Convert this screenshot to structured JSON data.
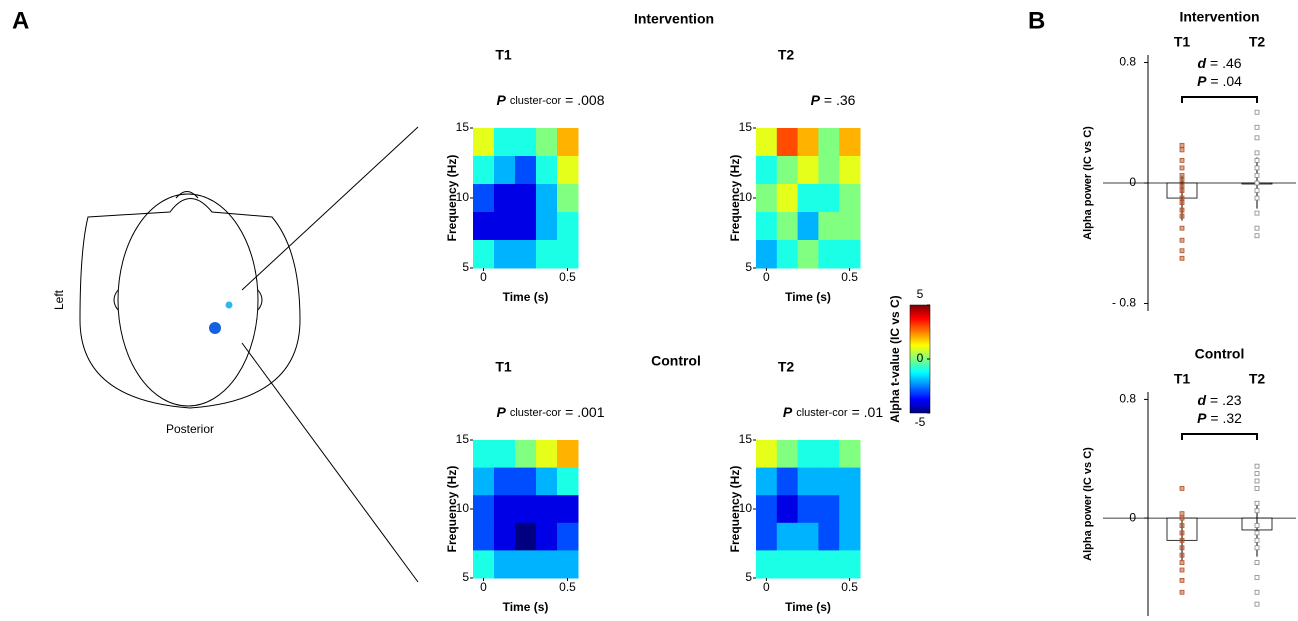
{
  "panel_labels": [
    "A",
    "B"
  ],
  "groups": [
    "Intervention",
    "Control"
  ],
  "head": {
    "labels": [
      "Left",
      "Posterior"
    ]
  },
  "chart_data": [
    {
      "type": "heatmap",
      "title": "T1",
      "stat": {
        "symbol": "P",
        "subscript": "cluster-cor",
        "text": "= .008"
      },
      "x": [
        0,
        0.125,
        0.25,
        0.375,
        0.5
      ],
      "y": [
        14,
        12,
        10,
        8,
        6
      ],
      "z": [
        [
          1,
          -1,
          -1,
          0,
          2
        ],
        [
          -1,
          -2,
          -3,
          -1,
          1
        ],
        [
          -3,
          -4,
          -4,
          -2,
          0
        ],
        [
          -4,
          -4,
          -4,
          -2,
          -1
        ],
        [
          -1,
          -2,
          -2,
          -1,
          -1
        ]
      ],
      "xlim": [
        -0.0625,
        0.5625
      ],
      "ylim": [
        5,
        15
      ],
      "xticks": [
        0,
        0.5
      ],
      "yticks": [
        5,
        10,
        15
      ],
      "xlabel": "Time (s)",
      "ylabel": "Frequency (Hz)"
    },
    {
      "type": "heatmap",
      "title": "T2",
      "stat": {
        "symbol": "P",
        "text": "= .36"
      },
      "x": [
        0,
        0.125,
        0.25,
        0.375,
        0.5
      ],
      "y": [
        14,
        12,
        10,
        8,
        6
      ],
      "z": [
        [
          1,
          3,
          2,
          0,
          2
        ],
        [
          -1,
          0,
          1,
          0,
          1
        ],
        [
          0,
          1,
          -1,
          -1,
          0
        ],
        [
          -1,
          0,
          -2,
          0,
          0
        ],
        [
          -2,
          -1,
          0,
          -1,
          -1
        ]
      ],
      "xlim": [
        -0.0625,
        0.5625
      ],
      "ylim": [
        5,
        15
      ],
      "xticks": [
        0,
        0.5
      ],
      "yticks": [
        5,
        10,
        15
      ],
      "xlabel": "Time (s)",
      "ylabel": "Frequency (Hz)"
    },
    {
      "type": "heatmap",
      "title": "T1",
      "stat": {
        "symbol": "P",
        "subscript": "cluster-cor",
        "text": "= .001"
      },
      "x": [
        0,
        0.125,
        0.25,
        0.375,
        0.5
      ],
      "y": [
        14,
        12,
        10,
        8,
        6
      ],
      "z": [
        [
          -1,
          -1,
          0,
          1,
          2
        ],
        [
          -2,
          -3,
          -3,
          -2,
          -1
        ],
        [
          -3,
          -4,
          -4,
          -4,
          -4
        ],
        [
          -3,
          -4,
          -5,
          -4,
          -3
        ],
        [
          -1,
          -2,
          -2,
          -2,
          -2
        ]
      ],
      "xlim": [
        -0.0625,
        0.5625
      ],
      "ylim": [
        5,
        15
      ],
      "xticks": [
        0,
        0.5
      ],
      "yticks": [
        5,
        10,
        15
      ],
      "xlabel": "Time (s)",
      "ylabel": "Frequency (Hz)"
    },
    {
      "type": "heatmap",
      "title": "T2",
      "stat": {
        "symbol": "P",
        "subscript": "cluster-cor",
        "text": "= .01"
      },
      "x": [
        0,
        0.125,
        0.25,
        0.375,
        0.5
      ],
      "y": [
        14,
        12,
        10,
        8,
        6
      ],
      "z": [
        [
          1,
          0,
          -1,
          -1,
          0
        ],
        [
          -2,
          -3,
          -2,
          -2,
          -2
        ],
        [
          -3,
          -4,
          -3,
          -3,
          -2
        ],
        [
          -3,
          -2,
          -2,
          -3,
          -2
        ],
        [
          -1,
          -1,
          -1,
          -1,
          -1
        ]
      ],
      "xlim": [
        -0.0625,
        0.5625
      ],
      "ylim": [
        5,
        15
      ],
      "xticks": [
        0,
        0.5
      ],
      "yticks": [
        5,
        10,
        15
      ],
      "xlabel": "Time (s)",
      "ylabel": "Frequency (Hz)"
    },
    {
      "type": "colorbar",
      "ylabel": "Alpha t-value (IC vs C)",
      "ylim": [
        -5,
        5
      ],
      "yticks": [
        -5,
        0,
        5
      ],
      "colormap": "jet"
    },
    {
      "type": "bar",
      "title": "Intervention",
      "categories": [
        "T1",
        "T2"
      ],
      "values": [
        -0.1,
        0
      ],
      "errors": [
        0.15,
        0.17
      ],
      "points": [
        [
          0.25,
          0.22,
          0.15,
          0.1,
          0.05,
          0.02,
          -0.02,
          -0.05,
          -0.1,
          -0.13,
          -0.18,
          -0.22,
          -0.3,
          -0.38,
          -0.45,
          -0.5
        ],
        [
          0.47,
          0.37,
          0.3,
          0.2,
          0.15,
          0.1,
          0.05,
          0,
          -0.05,
          -0.1,
          -0.2,
          -0.3,
          -0.35
        ]
      ],
      "point_colors": [
        "#b5532a",
        "#888888"
      ],
      "bar_color": "#ffffff",
      "stats": [
        {
          "symbol": "d",
          "text": "= .46"
        },
        {
          "symbol": "P",
          "text": "= .04"
        }
      ],
      "ylabel": "Alpha power (IC vs C)",
      "ylim": [
        -0.85,
        0.85
      ],
      "yticks": [
        {
          "value": -0.8,
          "label": "- 0.8"
        },
        0,
        0.8
      ]
    },
    {
      "type": "bar",
      "title": "Control",
      "categories": [
        "T1",
        "T2"
      ],
      "values": [
        -0.15,
        -0.08
      ],
      "errors": [
        0.14,
        0.18
      ],
      "points": [
        [
          0.2,
          0.03,
          0,
          -0.05,
          -0.1,
          -0.15,
          -0.2,
          -0.25,
          -0.3,
          -0.35,
          -0.42,
          -0.5
        ],
        [
          0.35,
          0.3,
          0.25,
          0.2,
          0.1,
          0.05,
          -0.05,
          -0.1,
          -0.15,
          -0.2,
          -0.3,
          -0.4,
          -0.5,
          -0.58
        ]
      ],
      "point_colors": [
        "#b5532a",
        "#888888"
      ],
      "bar_color": "#ffffff",
      "stats": [
        {
          "symbol": "d",
          "text": "= .23"
        },
        {
          "symbol": "P",
          "text": "= .32"
        }
      ],
      "ylabel": "Alpha power (IC vs C)",
      "ylim": [
        -0.66,
        0.85
      ],
      "yticks": [
        0,
        0.8
      ]
    }
  ]
}
